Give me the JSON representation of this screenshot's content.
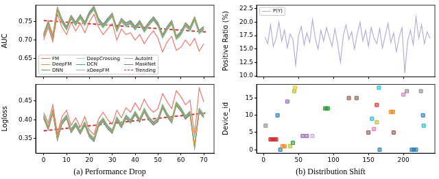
{
  "chart_data": [
    {
      "type": "line",
      "ylabel": "AUC",
      "legend": "lower left",
      "grid": false,
      "tick_labels": "y",
      "xlim": [
        -3.5,
        74.5
      ],
      "ylim": [
        0.6,
        0.795
      ],
      "xticks": [
        0,
        10,
        20,
        30,
        40,
        50,
        60,
        70
      ],
      "yticks": [
        0.65,
        {
          "value": 0.7,
          "label": "0.70"
        },
        0.75
      ],
      "x": [
        0,
        2,
        4,
        6,
        8,
        10,
        12,
        14,
        16,
        18,
        20,
        22,
        24,
        26,
        28,
        30,
        32,
        34,
        36,
        38,
        40,
        42,
        44,
        46,
        48,
        50,
        52,
        54,
        56,
        58,
        60,
        62,
        64,
        66,
        68,
        70
      ],
      "series": [
        {
          "name": "FM",
          "color": "#f26b5b",
          "values": [
            0.7,
            0.735,
            0.696,
            0.77,
            0.735,
            0.715,
            0.748,
            0.725,
            0.745,
            0.72,
            0.75,
            0.77,
            0.735,
            0.715,
            0.73,
            0.745,
            0.7,
            0.73,
            0.715,
            0.72,
            0.7,
            0.715,
            0.69,
            0.71,
            0.725,
            0.705,
            0.668,
            0.695,
            0.71,
            0.672,
            0.68,
            0.7,
            0.685,
            0.705,
            0.67,
            0.69
          ]
        },
        {
          "name": "DeepFM",
          "color": "#e8943a",
          "values": [
            0.712,
            0.748,
            0.708,
            0.786,
            0.753,
            0.733,
            0.763,
            0.745,
            0.765,
            0.745,
            0.773,
            0.788,
            0.755,
            0.739,
            0.755,
            0.769,
            0.729,
            0.755,
            0.743,
            0.749,
            0.733,
            0.749,
            0.727,
            0.745,
            0.759,
            0.743,
            0.711,
            0.733,
            0.749,
            0.707,
            0.719,
            0.743,
            0.731,
            0.759,
            0.723,
            0.733
          ]
        },
        {
          "name": "DNN",
          "color": "#4caf50",
          "values": [
            0.71,
            0.745,
            0.705,
            0.782,
            0.75,
            0.73,
            0.76,
            0.742,
            0.762,
            0.742,
            0.77,
            0.785,
            0.752,
            0.736,
            0.752,
            0.766,
            0.726,
            0.752,
            0.74,
            0.746,
            0.73,
            0.746,
            0.724,
            0.742,
            0.756,
            0.74,
            0.708,
            0.73,
            0.746,
            0.704,
            0.716,
            0.74,
            0.728,
            0.756,
            0.72,
            0.73
          ]
        },
        {
          "name": "DeepCrossing",
          "color": "#9ad9de",
          "values": [
            0.706,
            0.741,
            0.701,
            0.778,
            0.746,
            0.726,
            0.756,
            0.738,
            0.758,
            0.738,
            0.766,
            0.781,
            0.748,
            0.732,
            0.748,
            0.762,
            0.722,
            0.748,
            0.736,
            0.742,
            0.726,
            0.742,
            0.72,
            0.738,
            0.752,
            0.736,
            0.704,
            0.726,
            0.742,
            0.7,
            0.712,
            0.736,
            0.724,
            0.752,
            0.716,
            0.726
          ]
        },
        {
          "name": "DCN",
          "color": "#3aa6b9",
          "values": [
            0.715,
            0.75,
            0.71,
            0.787,
            0.755,
            0.735,
            0.765,
            0.747,
            0.767,
            0.747,
            0.775,
            0.79,
            0.757,
            0.741,
            0.757,
            0.771,
            0.731,
            0.757,
            0.745,
            0.751,
            0.735,
            0.751,
            0.729,
            0.747,
            0.761,
            0.745,
            0.713,
            0.735,
            0.751,
            0.709,
            0.721,
            0.745,
            0.733,
            0.761,
            0.725,
            0.735
          ]
        },
        {
          "name": "xDeepFM",
          "color": "#a99bd6",
          "values": [
            0.708,
            0.743,
            0.703,
            0.78,
            0.748,
            0.728,
            0.758,
            0.74,
            0.76,
            0.74,
            0.768,
            0.783,
            0.75,
            0.734,
            0.75,
            0.764,
            0.724,
            0.75,
            0.738,
            0.744,
            0.728,
            0.744,
            0.722,
            0.74,
            0.754,
            0.738,
            0.706,
            0.728,
            0.744,
            0.702,
            0.714,
            0.738,
            0.726,
            0.754,
            0.718,
            0.728
          ]
        },
        {
          "name": "AutoInt",
          "color": "#d98ad9",
          "values": [
            0.711,
            0.746,
            0.706,
            0.783,
            0.751,
            0.731,
            0.761,
            0.743,
            0.763,
            0.743,
            0.771,
            0.786,
            0.753,
            0.737,
            0.753,
            0.767,
            0.727,
            0.753,
            0.741,
            0.747,
            0.731,
            0.747,
            0.725,
            0.743,
            0.757,
            0.741,
            0.709,
            0.731,
            0.747,
            0.705,
            0.717,
            0.741,
            0.729,
            0.757,
            0.721,
            0.731
          ]
        },
        {
          "name": "MaskNet",
          "color": "#6c7f93",
          "values": [
            0.717,
            0.752,
            0.712,
            0.789,
            0.757,
            0.737,
            0.767,
            0.749,
            0.769,
            0.749,
            0.777,
            0.792,
            0.759,
            0.743,
            0.759,
            0.773,
            0.733,
            0.759,
            0.747,
            0.753,
            0.737,
            0.753,
            0.731,
            0.749,
            0.763,
            0.747,
            0.715,
            0.737,
            0.753,
            0.711,
            0.723,
            0.747,
            0.735,
            0.763,
            0.727,
            0.737
          ]
        },
        {
          "name": "Trending",
          "color": "#e41a1c",
          "line_style": "dashed",
          "x": [
            0,
            71
          ],
          "values": [
            0.753,
            0.722
          ]
        }
      ]
    },
    {
      "type": "line",
      "ylabel": "Logloss",
      "caption": "(a) Performance Drop",
      "grid": false,
      "xlim": [
        -3.5,
        74.5
      ],
      "ylim": [
        0.31,
        0.495
      ],
      "xticks": [
        0,
        10,
        20,
        30,
        40,
        50,
        60,
        70
      ],
      "yticks": [
        0.35,
        {
          "value": 0.4,
          "label": "0.40"
        },
        0.45
      ],
      "x": [
        0,
        2,
        4,
        6,
        8,
        10,
        12,
        14,
        16,
        18,
        20,
        22,
        24,
        26,
        28,
        30,
        32,
        34,
        36,
        38,
        40,
        42,
        44,
        46,
        48,
        50,
        52,
        54,
        56,
        58,
        60,
        62,
        64,
        66,
        68,
        70
      ],
      "series": [
        {
          "name": "FM",
          "color": "#f26b5b",
          "values": [
            0.418,
            0.392,
            0.44,
            0.362,
            0.408,
            0.425,
            0.385,
            0.405,
            0.38,
            0.408,
            0.372,
            0.36,
            0.402,
            0.42,
            0.4,
            0.388,
            0.425,
            0.405,
            0.432,
            0.42,
            0.445,
            0.425,
            0.455,
            0.432,
            0.42,
            0.43,
            0.47,
            0.448,
            0.43,
            0.478,
            0.462,
            0.44,
            0.452,
            0.36,
            0.485,
            0.448
          ]
        },
        {
          "name": "DeepFM",
          "color": "#e8943a",
          "values": [
            0.407,
            0.377,
            0.422,
            0.349,
            0.392,
            0.407,
            0.369,
            0.387,
            0.365,
            0.389,
            0.357,
            0.345,
            0.385,
            0.399,
            0.379,
            0.367,
            0.402,
            0.382,
            0.407,
            0.395,
            0.417,
            0.397,
            0.425,
            0.402,
            0.389,
            0.399,
            0.435,
            0.412,
            0.395,
            0.442,
            0.427,
            0.405,
            0.417,
            0.327,
            0.425,
            0.409
          ]
        },
        {
          "name": "DNN",
          "color": "#4caf50",
          "values": [
            0.41,
            0.38,
            0.425,
            0.352,
            0.395,
            0.41,
            0.372,
            0.39,
            0.368,
            0.392,
            0.36,
            0.348,
            0.388,
            0.402,
            0.382,
            0.37,
            0.405,
            0.385,
            0.41,
            0.398,
            0.42,
            0.4,
            0.428,
            0.405,
            0.392,
            0.402,
            0.438,
            0.415,
            0.398,
            0.445,
            0.43,
            0.408,
            0.42,
            0.33,
            0.428,
            0.412
          ]
        },
        {
          "name": "DeepCrossing",
          "color": "#9ad9de",
          "values": [
            0.414,
            0.384,
            0.429,
            0.356,
            0.399,
            0.414,
            0.376,
            0.394,
            0.372,
            0.396,
            0.364,
            0.352,
            0.392,
            0.406,
            0.386,
            0.374,
            0.409,
            0.389,
            0.414,
            0.402,
            0.424,
            0.404,
            0.432,
            0.409,
            0.396,
            0.406,
            0.442,
            0.419,
            0.402,
            0.449,
            0.434,
            0.412,
            0.424,
            0.334,
            0.432,
            0.416
          ]
        },
        {
          "name": "DCN",
          "color": "#3aa6b9",
          "values": [
            0.405,
            0.375,
            0.42,
            0.347,
            0.39,
            0.405,
            0.367,
            0.385,
            0.363,
            0.387,
            0.355,
            0.343,
            0.383,
            0.397,
            0.377,
            0.365,
            0.4,
            0.38,
            0.405,
            0.393,
            0.415,
            0.395,
            0.423,
            0.4,
            0.387,
            0.397,
            0.433,
            0.41,
            0.393,
            0.44,
            0.425,
            0.403,
            0.415,
            0.325,
            0.423,
            0.407
          ]
        },
        {
          "name": "xDeepFM",
          "color": "#a99bd6",
          "values": [
            0.412,
            0.382,
            0.427,
            0.354,
            0.397,
            0.412,
            0.374,
            0.392,
            0.37,
            0.394,
            0.362,
            0.35,
            0.39,
            0.404,
            0.384,
            0.372,
            0.407,
            0.387,
            0.412,
            0.4,
            0.422,
            0.402,
            0.43,
            0.407,
            0.394,
            0.404,
            0.44,
            0.417,
            0.4,
            0.447,
            0.432,
            0.41,
            0.422,
            0.332,
            0.43,
            0.414
          ]
        },
        {
          "name": "AutoInt",
          "color": "#d98ad9",
          "values": [
            0.409,
            0.379,
            0.424,
            0.351,
            0.394,
            0.409,
            0.371,
            0.389,
            0.367,
            0.391,
            0.359,
            0.347,
            0.387,
            0.401,
            0.381,
            0.369,
            0.404,
            0.384,
            0.409,
            0.397,
            0.419,
            0.399,
            0.427,
            0.404,
            0.391,
            0.401,
            0.437,
            0.414,
            0.397,
            0.444,
            0.429,
            0.407,
            0.419,
            0.329,
            0.427,
            0.411
          ]
        },
        {
          "name": "MaskNet",
          "color": "#6c7f93",
          "values": [
            0.403,
            0.373,
            0.418,
            0.345,
            0.388,
            0.403,
            0.365,
            0.383,
            0.361,
            0.385,
            0.353,
            0.341,
            0.381,
            0.395,
            0.375,
            0.363,
            0.398,
            0.378,
            0.403,
            0.391,
            0.413,
            0.393,
            0.421,
            0.398,
            0.385,
            0.395,
            0.431,
            0.408,
            0.391,
            0.438,
            0.423,
            0.401,
            0.413,
            0.323,
            0.421,
            0.405
          ]
        },
        {
          "name": "Trending",
          "color": "#e41a1c",
          "line_style": "dashed",
          "x": [
            0,
            71
          ],
          "values": [
            0.37,
            0.418
          ]
        }
      ]
    },
    {
      "type": "line",
      "ylabel": "Positive Ratio (%)",
      "legend": "upper left",
      "grid": false,
      "tick_labels": "y",
      "xlim": [
        -10,
        245
      ],
      "ylim": [
        9.8,
        23.2
      ],
      "xticks": [
        0,
        50,
        100,
        150,
        200
      ],
      "yticks": [
        {
          "value": 10,
          "label": "10.0"
        },
        12.5,
        {
          "value": 15,
          "label": "15.0"
        },
        17.5,
        {
          "value": 20,
          "label": "20.0"
        },
        22.5
      ],
      "x": [
        2,
        6,
        10,
        14,
        18,
        22,
        26,
        30,
        34,
        38,
        42,
        46,
        50,
        54,
        58,
        62,
        66,
        70,
        74,
        78,
        82,
        86,
        90,
        94,
        98,
        102,
        106,
        110,
        114,
        118,
        122,
        126,
        130,
        134,
        138,
        142,
        146,
        150,
        154,
        158,
        162,
        166,
        170,
        174,
        178,
        182,
        186,
        190,
        194,
        198,
        202,
        206,
        210,
        214,
        218,
        222,
        226,
        230,
        234,
        238
      ],
      "series": [
        {
          "name": "P(Y)",
          "color": "#b0a8d8",
          "values": [
            17.2,
            16.0,
            19.5,
            15.5,
            17.0,
            20.0,
            16.5,
            18.5,
            15.2,
            17.8,
            16.8,
            12.0,
            17.5,
            19.2,
            15.8,
            18.0,
            16.2,
            20.5,
            17.0,
            15.0,
            18.5,
            16.5,
            19.0,
            17.2,
            15.5,
            18.8,
            16.0,
            12.5,
            17.5,
            19.5,
            16.8,
            18.2,
            15.0,
            17.8,
            20.0,
            16.5,
            18.5,
            15.5,
            19.0,
            17.0,
            16.0,
            18.8,
            15.2,
            17.5,
            19.8,
            16.2,
            18.0,
            14.5,
            17.2,
            19.0,
            10.5,
            16.5,
            18.5,
            15.8,
            21.0,
            17.0,
            19.5,
            16.0,
            18.2,
            17.0
          ]
        }
      ]
    },
    {
      "type": "scatter",
      "ylabel": "Device_id",
      "caption": "(b) Distribution Shift",
      "grid": false,
      "marker": "square",
      "xlim": [
        -10,
        245
      ],
      "ylim": [
        -1,
        19
      ],
      "xticks": [
        0,
        50,
        100,
        150,
        200
      ],
      "yticks": [
        0,
        5,
        10,
        15
      ],
      "x": [
        3,
        10,
        12,
        14,
        16,
        18,
        20,
        24,
        27,
        30,
        34,
        38,
        42,
        44,
        45,
        56,
        62,
        70,
        88,
        90,
        92,
        122,
        133,
        150,
        155,
        158,
        162,
        162,
        165,
        166,
        182,
        185,
        186,
        200,
        205,
        212,
        215,
        218,
        225,
        228,
        229
      ],
      "values": [
        7,
        3,
        3,
        3,
        3,
        3,
        10,
        0,
        1,
        1,
        14,
        1,
        2,
        17,
        18,
        4,
        4,
        4,
        12,
        12,
        12,
        15,
        15,
        5,
        9,
        6,
        8,
        13,
        18,
        0,
        11,
        11,
        5,
        16,
        17,
        0,
        0,
        0,
        17,
        10,
        7
      ],
      "colors": [
        "#8c8c8c",
        "#d62728",
        "#d62728",
        "#d62728",
        "#d62728",
        "#d62728",
        "#1f77b4",
        "#1f77b4",
        "#ff7f0e",
        "#ff7f0e",
        "#9467bd",
        "#bcbd22",
        "#2ca02c",
        "#bcbd22",
        "#e6c229",
        "#9467bd",
        "#9467bd",
        "#c5b0d5",
        "#2ca02c",
        "#2ca02c",
        "#2ca02c",
        "#8c564b",
        "#8c564b",
        "#8c564b",
        "#17becf",
        "#e377c2",
        "#bcbd22",
        "#d62728",
        "#17becf",
        "#1f77b4",
        "#ff7f0e",
        "#ff7f0e",
        "#8c564b",
        "#e377c2",
        "#8c8c8c",
        "#1f77b4",
        "#1f77b4",
        "#1f77b4",
        "#8c8c8c",
        "#1f77b4",
        "#17becf"
      ]
    }
  ]
}
